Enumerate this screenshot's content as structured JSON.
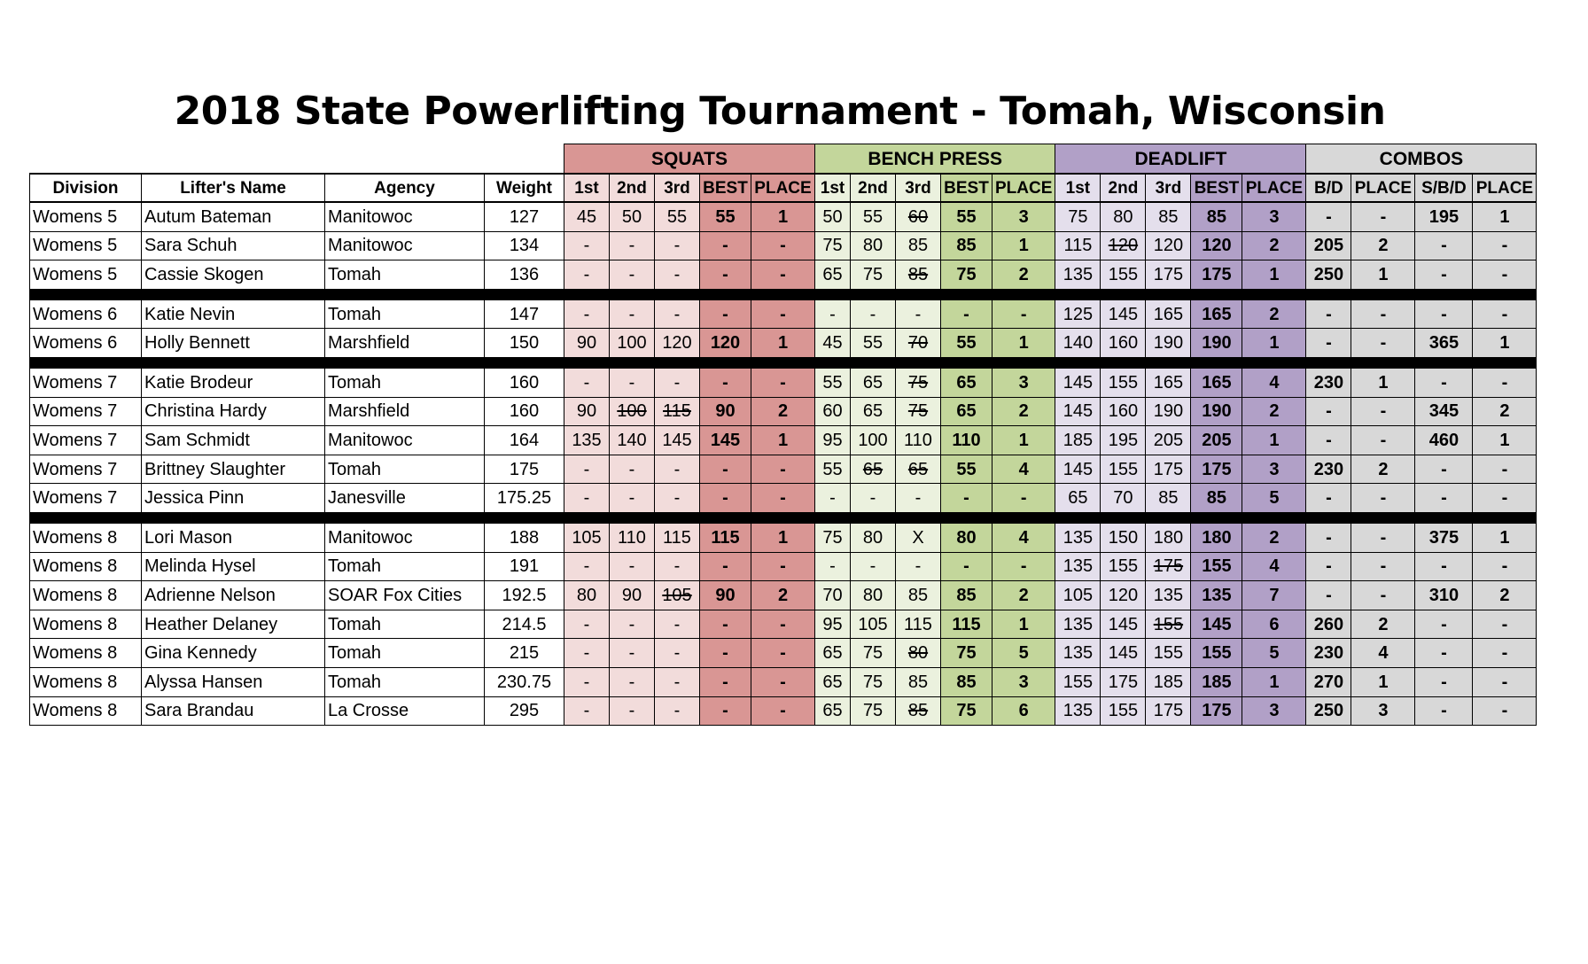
{
  "title": "2018 State Powerlifting Tournament - Tomah, Wisconsin",
  "groups": {
    "squats": "SQUATS",
    "bench": "BENCH PRESS",
    "deadlift": "DEADLIFT",
    "combos": "COMBOS"
  },
  "columns": [
    "Division",
    "Lifter's Name",
    "Agency",
    "Weight",
    "1st",
    "2nd",
    "3rd",
    "BEST",
    "PLACE",
    "1st",
    "2nd",
    "3rd",
    "BEST",
    "PLACE",
    "1st",
    "2nd",
    "3rd",
    "BEST",
    "PLACE",
    "B/D",
    "PLACE",
    "S/B/D",
    "PLACE"
  ],
  "struck_note": "Values with a trailing '~' are shown struck through (missed attempts).",
  "sections": [
    [
      [
        "Womens 5",
        "Autum Bateman",
        "Manitowoc",
        "127",
        "45",
        "50",
        "55",
        "55",
        "1",
        "50",
        "55",
        "60~",
        "55",
        "3",
        "75",
        "80",
        "85",
        "85",
        "3",
        "-",
        "-",
        "195",
        "1"
      ],
      [
        "Womens 5",
        "Sara Schuh",
        "Manitowoc",
        "134",
        "-",
        "-",
        "-",
        "-",
        "-",
        "75",
        "80",
        "85",
        "85",
        "1",
        "115",
        "120~",
        "120",
        "120",
        "2",
        "205",
        "2",
        "-",
        "-"
      ],
      [
        "Womens 5",
        "Cassie Skogen",
        "Tomah",
        "136",
        "-",
        "-",
        "-",
        "-",
        "-",
        "65",
        "75",
        "85~",
        "75",
        "2",
        "135",
        "155",
        "175",
        "175",
        "1",
        "250",
        "1",
        "-",
        "-"
      ]
    ],
    [
      [
        "Womens 6",
        "Katie Nevin",
        "Tomah",
        "147",
        "-",
        "-",
        "-",
        "-",
        "-",
        "-",
        "-",
        "-",
        "-",
        "-",
        "125",
        "145",
        "165",
        "165",
        "2",
        "-",
        "-",
        "-",
        "-"
      ],
      [
        "Womens 6",
        "Holly Bennett",
        "Marshfield",
        "150",
        "90",
        "100",
        "120",
        "120",
        "1",
        "45",
        "55",
        "70~",
        "55",
        "1",
        "140",
        "160",
        "190",
        "190",
        "1",
        "-",
        "-",
        "365",
        "1"
      ]
    ],
    [
      [
        "Womens 7",
        "Katie Brodeur",
        "Tomah",
        "160",
        "-",
        "-",
        "-",
        "-",
        "-",
        "55",
        "65",
        "75~",
        "65",
        "3",
        "145",
        "155",
        "165",
        "165",
        "4",
        "230",
        "1",
        "-",
        "-"
      ],
      [
        "Womens 7",
        "Christina Hardy",
        "Marshfield",
        "160",
        "90",
        "100~",
        "115~",
        "90",
        "2",
        "60",
        "65",
        "75~",
        "65",
        "2",
        "145",
        "160",
        "190",
        "190",
        "2",
        "-",
        "-",
        "345",
        "2"
      ],
      [
        "Womens 7",
        "Sam Schmidt",
        "Manitowoc",
        "164",
        "135",
        "140",
        "145",
        "145",
        "1",
        "95",
        "100",
        "110",
        "110",
        "1",
        "185",
        "195",
        "205",
        "205",
        "1",
        "-",
        "-",
        "460",
        "1"
      ],
      [
        "Womens 7",
        "Brittney Slaughter",
        "Tomah",
        "175",
        "-",
        "-",
        "-",
        "-",
        "-",
        "55",
        "65~",
        "65~",
        "55",
        "4",
        "145",
        "155",
        "175",
        "175",
        "3",
        "230",
        "2",
        "-",
        "-"
      ],
      [
        "Womens 7",
        "Jessica Pinn",
        "Janesville",
        "175.25",
        "-",
        "-",
        "-",
        "-",
        "-",
        "-",
        "-",
        "-",
        "-",
        "-",
        "65",
        "70",
        "85",
        "85",
        "5",
        "-",
        "-",
        "-",
        "-"
      ]
    ],
    [
      [
        "Womens 8",
        "Lori Mason",
        "Manitowoc",
        "188",
        "105",
        "110",
        "115",
        "115",
        "1",
        "75",
        "80",
        "X",
        "80",
        "4",
        "135",
        "150",
        "180",
        "180",
        "2",
        "-",
        "-",
        "375",
        "1"
      ],
      [
        "Womens 8",
        "Melinda Hysel",
        "Tomah",
        "191",
        "-",
        "-",
        "-",
        "-",
        "-",
        "-",
        "-",
        "-",
        "-",
        "-",
        "135",
        "155",
        "175~",
        "155",
        "4",
        "-",
        "-",
        "-",
        "-"
      ],
      [
        "Womens 8",
        "Adrienne Nelson",
        "SOAR Fox Cities",
        "192.5",
        "80",
        "90",
        "105~",
        "90",
        "2",
        "70",
        "80",
        "85",
        "85",
        "2",
        "105",
        "120",
        "135",
        "135",
        "7",
        "-",
        "-",
        "310",
        "2"
      ],
      [
        "Womens 8",
        "Heather Delaney",
        "Tomah",
        "214.5",
        "-",
        "-",
        "-",
        "-",
        "-",
        "95",
        "105",
        "115",
        "115",
        "1",
        "135",
        "145",
        "155~",
        "145",
        "6",
        "260",
        "2",
        "-",
        "-"
      ],
      [
        "Womens 8",
        "Gina Kennedy",
        "Tomah",
        "215",
        "-",
        "-",
        "-",
        "-",
        "-",
        "65",
        "75",
        "80~",
        "75",
        "5",
        "135",
        "145",
        "155",
        "155",
        "5",
        "230",
        "4",
        "-",
        "-"
      ],
      [
        "Womens 8",
        "Alyssa Hansen",
        "Tomah",
        "230.75",
        "-",
        "-",
        "-",
        "-",
        "-",
        "65",
        "75",
        "85",
        "85",
        "3",
        "155",
        "175",
        "185",
        "185",
        "1",
        "270",
        "1",
        "-",
        "-"
      ],
      [
        "Womens 8",
        "Sara Brandau",
        "La Crosse",
        "295",
        "-",
        "-",
        "-",
        "-",
        "-",
        "65",
        "75",
        "85~",
        "75",
        "6",
        "135",
        "155",
        "175",
        "175",
        "3",
        "250",
        "3",
        "-",
        "-"
      ]
    ]
  ]
}
